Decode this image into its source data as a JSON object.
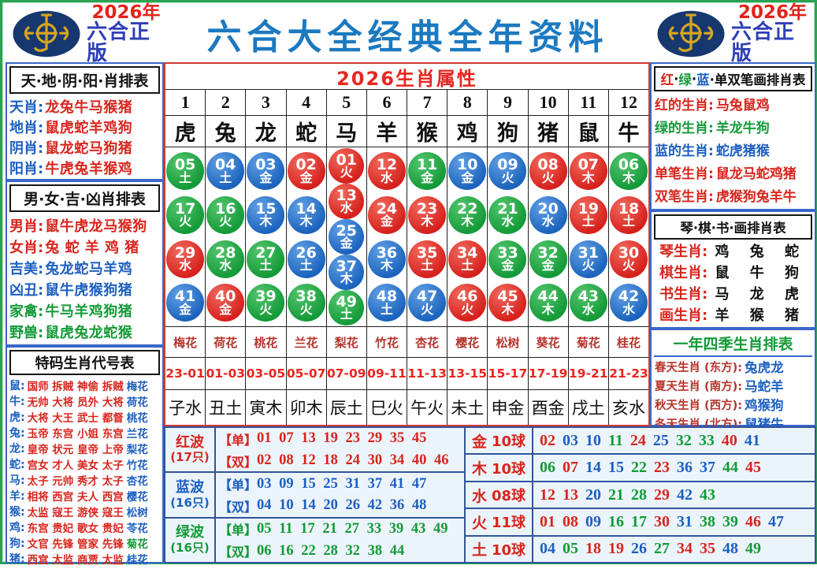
{
  "brand": {
    "year": "2026年",
    "edition": "六合正版"
  },
  "title": "六合大全经典全年资料",
  "left": {
    "sky_table": {
      "title": "天·地·阴·阳·肖排表",
      "rows": [
        {
          "label": "天肖:",
          "value": "龙兔牛马猴猪"
        },
        {
          "label": "地肖:",
          "value": "鼠虎蛇羊鸡狗"
        },
        {
          "label": "阴肖:",
          "value": "鼠龙蛇马狗猪"
        },
        {
          "label": "阳肖:",
          "value": "牛虎兔羊猴鸡"
        }
      ]
    },
    "gender_table": {
      "title": "男·女·吉·凶肖排表",
      "rows": [
        {
          "label": "男肖:",
          "value": "鼠牛虎龙马猴狗",
          "color": "red"
        },
        {
          "label": "女肖:",
          "value": "兔 蛇 羊 鸡 猪",
          "color": "red"
        },
        {
          "label": "吉美:",
          "value": "兔龙蛇马羊鸡",
          "color": "blue"
        },
        {
          "label": "凶丑:",
          "value": "鼠牛虎猴狗猪",
          "color": "blue"
        },
        {
          "label": "家禽:",
          "value": "牛马羊鸡狗猪",
          "color": "green"
        },
        {
          "label": "野兽:",
          "value": "鼠虎兔龙蛇猴",
          "color": "green"
        }
      ]
    },
    "code_table": {
      "title": "特码生肖代号表",
      "rows": [
        {
          "label": "鼠:",
          "titles": "国师 拆贼 神偷 拆贼",
          "flower": "梅花",
          "flower_color": "blue"
        },
        {
          "label": "牛:",
          "titles": "无帅 大将 员外 大将",
          "flower": "荷花",
          "flower_color": "blue"
        },
        {
          "label": "虎:",
          "titles": "大将 大王 武士 都督",
          "flower": "桃花",
          "flower_color": "blue"
        },
        {
          "label": "兔:",
          "titles": "玉帝 东宫 小姐 东宫",
          "flower": "兰花",
          "flower_color": "blue"
        },
        {
          "label": "龙:",
          "titles": "皇帝 状元 皇帝 上帝",
          "flower": "梨花",
          "flower_color": "blue"
        },
        {
          "label": "蛇:",
          "titles": "宫女 才人 美女 太子",
          "flower": "竹花",
          "flower_color": "blue"
        },
        {
          "label": "马:",
          "titles": "太子 元帅 秀才 太子",
          "flower": "杏花",
          "flower_color": "blue"
        },
        {
          "label": "羊:",
          "titles": "相将 西宫 夫人 西宫",
          "flower": "樱花",
          "flower_color": "blue"
        },
        {
          "label": "猴:",
          "titles": "太监 寇王 游侠 寇王",
          "flower": "松树",
          "flower_color": "blue"
        },
        {
          "label": "鸡:",
          "titles": "东宫 贵妃 歌女 贵妃",
          "flower": "苓花",
          "flower_color": "blue"
        },
        {
          "label": "狗:",
          "titles": "文官 先锋 管家 先锋",
          "flower": "菊花",
          "flower_color": "green"
        },
        {
          "label": "猪:",
          "titles": "西宫 太监 商贾 太监",
          "flower": "桂花",
          "flower_color": "blue"
        }
      ]
    }
  },
  "center": {
    "title": "2026生肖属性",
    "columns": [
      {
        "num": "1",
        "zodiac": "虎",
        "balls": [
          [
            "05",
            "土"
          ],
          [
            "17",
            "火"
          ],
          [
            "29",
            "水"
          ],
          [
            "41",
            "金"
          ]
        ],
        "flower": "梅花",
        "time": "23-01",
        "branch": "子水"
      },
      {
        "num": "2",
        "zodiac": "兔",
        "balls": [
          [
            "04",
            "土"
          ],
          [
            "16",
            "火"
          ],
          [
            "28",
            "水"
          ],
          [
            "40",
            "金"
          ]
        ],
        "flower": "荷花",
        "time": "01-03",
        "branch": "丑土"
      },
      {
        "num": "3",
        "zodiac": "龙",
        "balls": [
          [
            "03",
            "金"
          ],
          [
            "15",
            "木"
          ],
          [
            "27",
            "土"
          ],
          [
            "39",
            "火"
          ]
        ],
        "flower": "桃花",
        "time": "03-05",
        "branch": "寅木"
      },
      {
        "num": "4",
        "zodiac": "蛇",
        "balls": [
          [
            "02",
            "金"
          ],
          [
            "14",
            "木"
          ],
          [
            "26",
            "土"
          ],
          [
            "38",
            "火"
          ]
        ],
        "flower": "兰花",
        "time": "05-07",
        "branch": "卯木"
      },
      {
        "num": "5",
        "zodiac": "马",
        "balls": [
          [
            "01",
            "火"
          ],
          [
            "13",
            "水"
          ],
          [
            "25",
            "金"
          ],
          [
            "37",
            "木"
          ],
          [
            "49",
            "土"
          ]
        ],
        "flower": "梨花",
        "time": "07-09",
        "branch": "辰土"
      },
      {
        "num": "6",
        "zodiac": "羊",
        "balls": [
          [
            "12",
            "水"
          ],
          [
            "24",
            "金"
          ],
          [
            "36",
            "木"
          ],
          [
            "48",
            "土"
          ]
        ],
        "flower": "竹花",
        "time": "09-11",
        "branch": "巳火"
      },
      {
        "num": "7",
        "zodiac": "猴",
        "balls": [
          [
            "11",
            "金"
          ],
          [
            "23",
            "木"
          ],
          [
            "35",
            "土"
          ],
          [
            "47",
            "火"
          ]
        ],
        "flower": "杏花",
        "time": "11-13",
        "branch": "午火"
      },
      {
        "num": "8",
        "zodiac": "鸡",
        "balls": [
          [
            "10",
            "金"
          ],
          [
            "22",
            "木"
          ],
          [
            "34",
            "土"
          ],
          [
            "46",
            "火"
          ]
        ],
        "flower": "樱花",
        "time": "13-15",
        "branch": "未土"
      },
      {
        "num": "9",
        "zodiac": "狗",
        "balls": [
          [
            "09",
            "火"
          ],
          [
            "21",
            "水"
          ],
          [
            "33",
            "金"
          ],
          [
            "45",
            "木"
          ]
        ],
        "flower": "松树",
        "time": "15-17",
        "branch": "申金"
      },
      {
        "num": "10",
        "zodiac": "猪",
        "balls": [
          [
            "08",
            "火"
          ],
          [
            "20",
            "水"
          ],
          [
            "32",
            "金"
          ],
          [
            "44",
            "木"
          ]
        ],
        "flower": "葵花",
        "time": "17-19",
        "branch": "酉金"
      },
      {
        "num": "11",
        "zodiac": "鼠",
        "balls": [
          [
            "07",
            "木"
          ],
          [
            "19",
            "土"
          ],
          [
            "31",
            "火"
          ],
          [
            "43",
            "水"
          ]
        ],
        "flower": "菊花",
        "time": "19-21",
        "branch": "戌土"
      },
      {
        "num": "12",
        "zodiac": "牛",
        "balls": [
          [
            "06",
            "木"
          ],
          [
            "18",
            "土"
          ],
          [
            "30",
            "火"
          ],
          [
            "42",
            "水"
          ]
        ],
        "flower": "桂花",
        "time": "21-23",
        "branch": "亥水"
      }
    ]
  },
  "waves": {
    "odd_tag": "【单】",
    "even_tag": "【双】",
    "groups": [
      {
        "name": "红波",
        "count": "(17只)",
        "color": "red",
        "odd": "01 07 13 19 23 29 35 45",
        "even": "02 08 12 18 24 30 34 40 46"
      },
      {
        "name": "蓝波",
        "count": "(16只)",
        "color": "blue",
        "odd": "03 09 15 25 31 37 41 47",
        "even": "04 10 14 20 26 42 36 48"
      },
      {
        "name": "绿波",
        "count": "(16只)",
        "color": "green",
        "odd": "05 11 17 21 27 33 39 43 49",
        "even": "06 16 22 28 32 38 44"
      }
    ]
  },
  "elements": {
    "rows": [
      {
        "elem": "金",
        "count": "10球",
        "numbers": "02 03 10 11 24 25 32 33 40 41"
      },
      {
        "elem": "木",
        "count": "10球",
        "numbers": "06 07 14 15 22 23 36 37 44 45"
      },
      {
        "elem": "水",
        "count": "08球",
        "numbers": "12 13 20 21 28 29 42 43"
      },
      {
        "elem": "火",
        "count": "11球",
        "numbers": "01 08 09 16 17 30 31 38 39 46 47"
      },
      {
        "elem": "土",
        "count": "10球",
        "numbers": "04 05 18 19 26 27 34 35 48 49"
      }
    ]
  },
  "right": {
    "color_table": {
      "title_segments": [
        {
          "text": "红",
          "color": "red"
        },
        {
          "text": "·",
          "color": "black"
        },
        {
          "text": "绿",
          "color": "green"
        },
        {
          "text": "·",
          "color": "black"
        },
        {
          "text": "蓝",
          "color": "blue"
        },
        {
          "text": "·单双笔画排肖表",
          "color": "black"
        }
      ],
      "rows": [
        {
          "label": "红的生肖:",
          "value": "马兔鼠鸡",
          "color": "red"
        },
        {
          "label": "绿的生肖:",
          "value": "羊龙牛狗",
          "color": "green"
        },
        {
          "label": "蓝的生肖:",
          "value": "蛇虎猪猴",
          "color": "blue"
        },
        {
          "label": "单笔生肖:",
          "value": "鼠龙马蛇鸡猪",
          "color": "red"
        },
        {
          "label": "双笔生肖:",
          "value": "虎猴狗兔羊牛",
          "color": "red"
        }
      ]
    },
    "arts_table": {
      "title": "琴·棋·书·画排肖表",
      "rows": [
        {
          "label": "琴生肖:",
          "value": "鸡 兔 蛇"
        },
        {
          "label": "棋生肖:",
          "value": "鼠 牛 狗"
        },
        {
          "label": "书生肖:",
          "value": "马 龙 虎"
        },
        {
          "label": "画生肖:",
          "value": "羊 猴 猪"
        }
      ]
    },
    "season_table": {
      "title": "一年四季生肖排表",
      "rows": [
        {
          "label": "春天生肖 (东方):",
          "value": "兔虎龙"
        },
        {
          "label": "夏天生肖 (南方):",
          "value": "马蛇羊"
        },
        {
          "label": "秋天生肖 (西方):",
          "value": "鸡猴狗"
        },
        {
          "label": "冬天生肖 (北方):",
          "value": "鼠猪牛"
        }
      ]
    }
  },
  "colors": {
    "red": "#d8251d",
    "blue": "#1c5fc0",
    "green": "#149a38"
  }
}
